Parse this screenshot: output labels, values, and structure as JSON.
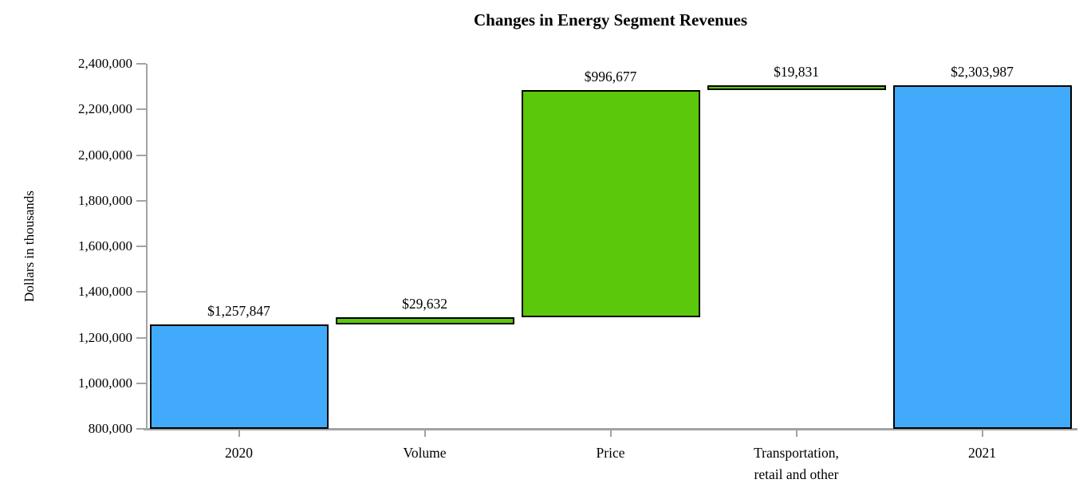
{
  "chart_data": {
    "type": "bar",
    "subtype": "waterfall",
    "title": "Changes in Energy Segment Revenues",
    "ylabel": "Dollars in thousands",
    "xlabel": "",
    "ylim": [
      800000,
      2400000
    ],
    "ytick_step": 200000,
    "yticks": [
      {
        "value": 800000,
        "label": "800,000"
      },
      {
        "value": 1000000,
        "label": "1,000,000"
      },
      {
        "value": 1200000,
        "label": "1,200,000"
      },
      {
        "value": 1400000,
        "label": "1,400,000"
      },
      {
        "value": 1600000,
        "label": "1,600,000"
      },
      {
        "value": 1800000,
        "label": "1,800,000"
      },
      {
        "value": 2000000,
        "label": "2,000,000"
      },
      {
        "value": 2200000,
        "label": "2,200,000"
      },
      {
        "value": 2400000,
        "label": "2,400,000"
      }
    ],
    "categories": [
      "2020",
      "Volume",
      "Price",
      "Transportation,\nretail and other",
      "2021"
    ],
    "bars": [
      {
        "category": "2020",
        "name": "bar-2020",
        "value_label": "$1,257,847",
        "start": 800000,
        "end": 1257847,
        "role": "total",
        "color_key": "blue"
      },
      {
        "category": "Volume",
        "name": "bar-volume",
        "value_label": "$29,632",
        "start": 1257847,
        "end": 1287479,
        "role": "increase",
        "color_key": "green"
      },
      {
        "category": "Price",
        "name": "bar-price",
        "value_label": "$996,677",
        "start": 1287479,
        "end": 2284156,
        "role": "increase",
        "color_key": "green"
      },
      {
        "category": "Transportation,\nretail and other",
        "name": "bar-transportation-retail-and-other",
        "value_label": "$19,831",
        "start": 2284156,
        "end": 2303987,
        "role": "increase",
        "color_key": "green"
      },
      {
        "category": "2021",
        "name": "bar-2021",
        "value_label": "$2,303,987",
        "start": 800000,
        "end": 2303987,
        "role": "total",
        "color_key": "blue"
      }
    ],
    "grid": "off",
    "legend": "none",
    "colors": {
      "blue": "#41aafa",
      "green": "#5cc80c",
      "bar_border": "#000000",
      "axis": "#a3a3a3",
      "text": "#000000",
      "background": "#ffffff"
    }
  }
}
